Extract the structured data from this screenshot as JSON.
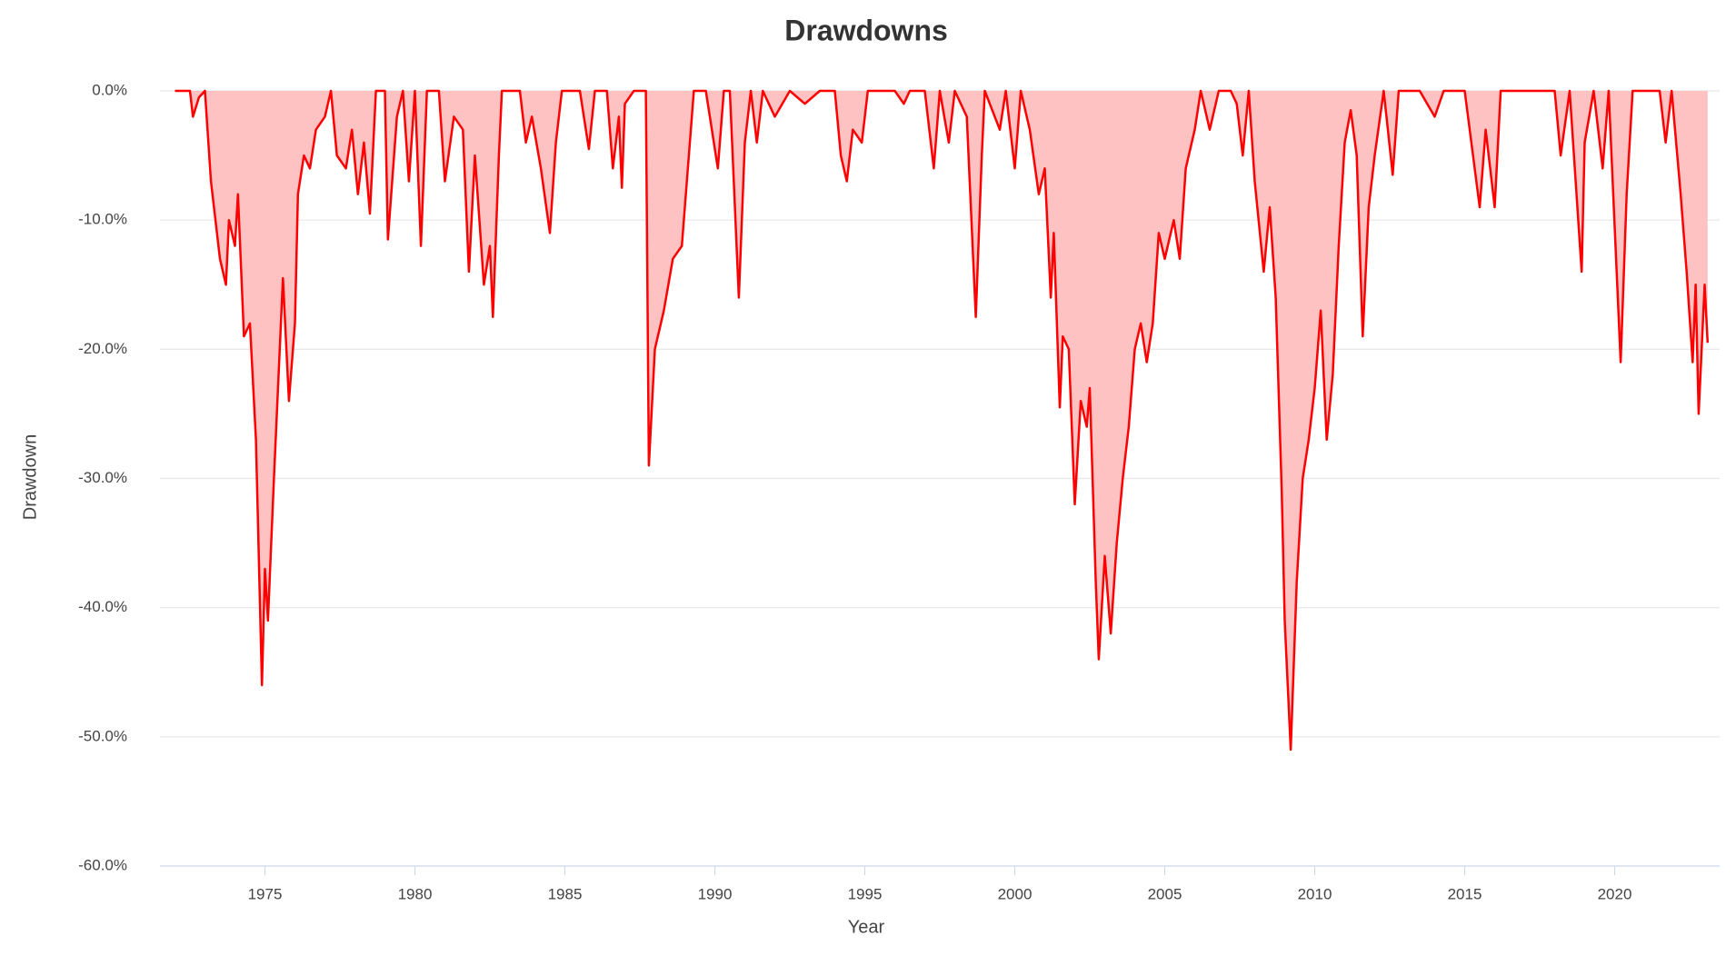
{
  "chart_data": {
    "type": "area",
    "title": "Drawdowns",
    "x_label": "Year",
    "y_label": "Drawdown",
    "color": "#ff0000",
    "area_color": "#ffc2c2",
    "grid": true,
    "xlim": [
      1971.5,
      2023.5
    ],
    "xticks": [
      1975,
      1980,
      1985,
      1990,
      1995,
      2000,
      2005,
      2010,
      2015,
      2020
    ],
    "ylim": [
      -60,
      0
    ],
    "yticks": [
      {
        "value": 0,
        "label": "0.0%"
      },
      {
        "value": -10,
        "label": "-10.0%"
      },
      {
        "value": -20,
        "label": "-20.0%"
      },
      {
        "value": -30,
        "label": "-30.0%"
      },
      {
        "value": -40,
        "label": "-40.0%"
      },
      {
        "value": -50,
        "label": "-50.0%"
      },
      {
        "value": -60,
        "label": "-60.0%"
      }
    ],
    "x": [
      1972.0,
      1972.5,
      1972.6,
      1972.8,
      1973.0,
      1973.2,
      1973.5,
      1973.7,
      1973.8,
      1974.0,
      1974.1,
      1974.3,
      1974.5,
      1974.7,
      1974.9,
      1975.0,
      1975.1,
      1975.3,
      1975.6,
      1975.8,
      1976.0,
      1976.1,
      1976.3,
      1976.5,
      1976.7,
      1977.0,
      1977.2,
      1977.4,
      1977.7,
      1977.9,
      1978.1,
      1978.3,
      1978.5,
      1978.7,
      1979.0,
      1979.1,
      1979.4,
      1979.6,
      1979.8,
      1980.0,
      1980.2,
      1980.4,
      1980.8,
      1981.0,
      1981.3,
      1981.6,
      1981.8,
      1982.0,
      1982.3,
      1982.5,
      1982.6,
      1982.8,
      1982.9,
      1983.5,
      1983.7,
      1983.9,
      1984.2,
      1984.5,
      1984.7,
      1984.9,
      1985.5,
      1985.8,
      1986.0,
      1986.4,
      1986.6,
      1986.8,
      1986.9,
      1987.0,
      1987.3,
      1987.7,
      1987.8,
      1988.0,
      1988.3,
      1988.6,
      1988.9,
      1989.1,
      1989.3,
      1989.7,
      1989.9,
      1990.1,
      1990.3,
      1990.5,
      1990.8,
      1991.0,
      1991.2,
      1991.4,
      1991.6,
      1992.0,
      1992.5,
      1993.0,
      1993.5,
      1994.0,
      1994.2,
      1994.4,
      1994.6,
      1994.9,
      1995.1,
      1996.0,
      1996.3,
      1996.5,
      1997.0,
      1997.3,
      1997.5,
      1997.8,
      1998.0,
      1998.4,
      1998.7,
      1998.9,
      1999.0,
      1999.5,
      1999.7,
      2000.0,
      2000.2,
      2000.5,
      2000.8,
      2001.0,
      2001.2,
      2001.3,
      2001.5,
      2001.6,
      2001.8,
      2002.0,
      2002.2,
      2002.4,
      2002.5,
      2002.7,
      2002.8,
      2003.0,
      2003.2,
      2003.4,
      2003.6,
      2003.8,
      2004.0,
      2004.2,
      2004.4,
      2004.6,
      2004.8,
      2005.0,
      2005.3,
      2005.5,
      2005.7,
      2006.0,
      2006.2,
      2006.5,
      2006.8,
      2007.2,
      2007.4,
      2007.6,
      2007.8,
      2008.0,
      2008.3,
      2008.5,
      2008.7,
      2008.9,
      2009.0,
      2009.2,
      2009.4,
      2009.6,
      2009.8,
      2010.0,
      2010.2,
      2010.4,
      2010.6,
      2010.8,
      2011.0,
      2011.2,
      2011.4,
      2011.6,
      2011.8,
      2012.0,
      2012.3,
      2012.6,
      2012.8,
      2013.5,
      2014.0,
      2014.3,
      2015.0,
      2015.5,
      2015.7,
      2016.0,
      2016.2,
      2017.0,
      2018.0,
      2018.2,
      2018.5,
      2018.9,
      2019.0,
      2019.3,
      2019.6,
      2019.8,
      2020.2,
      2020.4,
      2020.6,
      2021.0,
      2021.5,
      2021.7,
      2021.9,
      2022.2,
      2022.4,
      2022.6,
      2022.7,
      2022.8,
      2023.0,
      2023.1
    ],
    "values": [
      0,
      0,
      -2,
      -0.5,
      0,
      -7,
      -13,
      -15,
      -10,
      -12,
      -8,
      -19,
      -18,
      -27,
      -46,
      -37,
      -41,
      -30,
      -14.5,
      -24,
      -18,
      -8,
      -5,
      -6,
      -3,
      -2,
      0,
      -5,
      -6,
      -3,
      -8,
      -4,
      -9.5,
      0,
      0,
      -11.5,
      -2,
      0,
      -7,
      0,
      -12,
      0,
      0,
      -7,
      -2,
      -3,
      -14,
      -5,
      -15,
      -12,
      -17.5,
      -5,
      0,
      0,
      -4,
      -2,
      -6,
      -11,
      -4,
      0,
      0,
      -4.5,
      0,
      0,
      -6,
      -2,
      -7.5,
      -1,
      0,
      0,
      -29,
      -20,
      -17,
      -13,
      -12,
      -6,
      0,
      0,
      -3,
      -6,
      0,
      0,
      -16,
      -4,
      0,
      -4,
      0,
      -2,
      0,
      -1,
      0,
      0,
      -5,
      -7,
      -3,
      -4,
      0,
      0,
      -1,
      0,
      0,
      -6,
      0,
      -4,
      0,
      -2,
      -17.5,
      -5,
      0,
      -3,
      0,
      -6,
      0,
      -3,
      -8,
      -6,
      -16,
      -11,
      -24.5,
      -19,
      -20,
      -32,
      -24,
      -26,
      -23,
      -38,
      -44,
      -36,
      -42,
      -35,
      -30,
      -26,
      -20,
      -18,
      -21,
      -18,
      -11,
      -13,
      -10,
      -13,
      -6,
      -3,
      0,
      -3,
      0,
      0,
      -1,
      -5,
      0,
      -7,
      -14,
      -9,
      -16,
      -31,
      -41,
      -51,
      -38,
      -30,
      -27,
      -23,
      -17,
      -27,
      -22,
      -12,
      -4,
      -1.5,
      -5,
      -19,
      -9,
      -5,
      0,
      -6.5,
      0,
      0,
      -2,
      0,
      0,
      -9,
      -3,
      -9,
      0,
      0,
      0,
      -5,
      0,
      -14,
      -4,
      0,
      -6,
      0,
      -21,
      -8,
      0,
      0,
      0,
      -4,
      0,
      -8,
      -14,
      -21,
      -15,
      -25,
      -15,
      -19.5
    ]
  }
}
